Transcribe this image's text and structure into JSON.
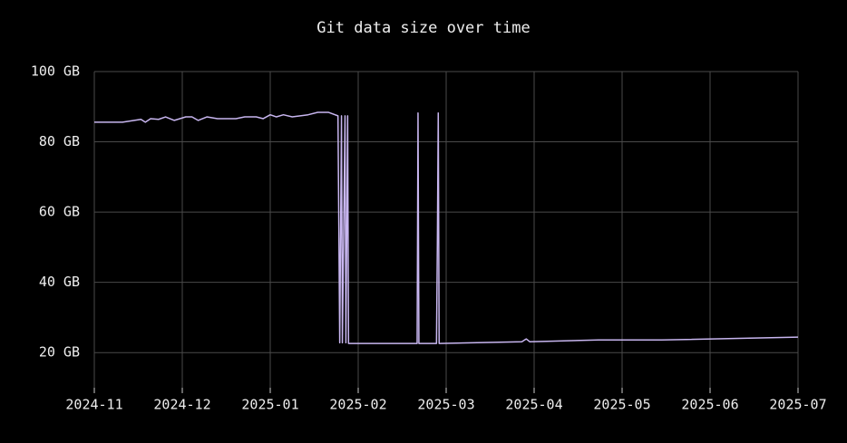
{
  "chart_data": {
    "type": "line",
    "title": "Git data size over time",
    "x": [
      0,
      0.32,
      0.53,
      0.58,
      0.64,
      0.73,
      0.81,
      0.91,
      1.04,
      1.11,
      1.18,
      1.28,
      1.4,
      1.61,
      1.71,
      1.84,
      1.92,
      2.0,
      2.07,
      2.15,
      2.25,
      2.43,
      2.54,
      2.66,
      2.77,
      2.79,
      2.81,
      2.82,
      2.85,
      2.86,
      2.88,
      2.89,
      3.67,
      3.68,
      3.69,
      3.89,
      3.9,
      3.91,
      3.92,
      4.86,
      4.91,
      4.95,
      5.73,
      6.45,
      8.0
    ],
    "series": [
      {
        "color": "#c8b6f0",
        "values": [
          85.6,
          85.6,
          86.4,
          85.6,
          86.6,
          86.4,
          87.1,
          86.1,
          87.1,
          87.1,
          86.1,
          87.1,
          86.6,
          86.6,
          87.1,
          87.1,
          86.6,
          87.7,
          87.1,
          87.7,
          87.1,
          87.7,
          88.4,
          88.4,
          87.4,
          22.8,
          87.4,
          22.8,
          87.4,
          22.8,
          87.4,
          22.6,
          22.6,
          88.2,
          22.6,
          22.6,
          50.9,
          88.2,
          22.6,
          23.1,
          23.9,
          23.1,
          23.6,
          23.6,
          24.4
        ]
      }
    ],
    "xlim": [
      0,
      8
    ],
    "xticks": [
      {
        "value": 0,
        "label": "2024-11"
      },
      {
        "value": 1,
        "label": "2024-12"
      },
      {
        "value": 2,
        "label": "2025-01"
      },
      {
        "value": 3,
        "label": "2025-02"
      },
      {
        "value": 4,
        "label": "2025-03"
      },
      {
        "value": 5,
        "label": "2025-04"
      },
      {
        "value": 6,
        "label": "2025-05"
      },
      {
        "value": 7,
        "label": "2025-06"
      },
      {
        "value": 8,
        "label": "2025-07"
      }
    ],
    "ylim": [
      10,
      100
    ],
    "yticks": [
      {
        "value": 20,
        "label": "20 GB"
      },
      {
        "value": 40,
        "label": "40 GB"
      },
      {
        "value": 60,
        "label": "60 GB"
      },
      {
        "value": 80,
        "label": "80 GB"
      },
      {
        "value": 100,
        "label": "100 GB"
      }
    ],
    "grid": true
  }
}
